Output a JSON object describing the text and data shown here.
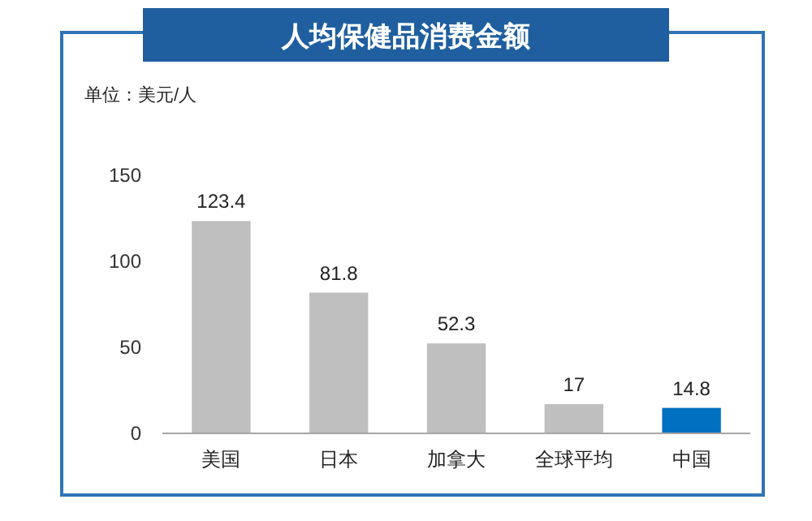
{
  "chart_data": {
    "type": "bar",
    "title": "人均保健品消费金额",
    "annotations": [
      "单位：美元/人"
    ],
    "categories": [
      "美国",
      "日本",
      "加拿大",
      "全球平均",
      "中国"
    ],
    "values": [
      123.4,
      81.8,
      52.3,
      17,
      14.8
    ],
    "colors": [
      "#bfbfbf",
      "#bfbfbf",
      "#bfbfbf",
      "#bfbfbf",
      "#0070c0"
    ],
    "ylim": [
      0,
      150
    ],
    "yticks": [
      0,
      50,
      100,
      150
    ],
    "data_labels": true,
    "grid": false
  }
}
